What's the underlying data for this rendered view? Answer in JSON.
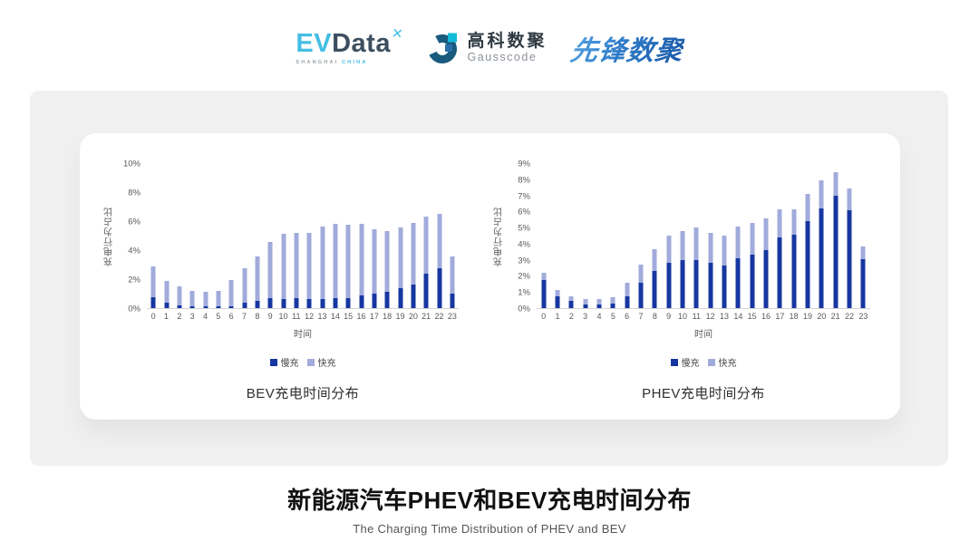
{
  "header": {
    "evdata": {
      "ev": "EV",
      "data": "Data",
      "mark": "x-star",
      "sub_left": "SHANGHAI",
      "sub_right": "CHINA"
    },
    "gausscode": {
      "cn": "高科数聚",
      "en": "Gausscode",
      "mark": "g-circle"
    },
    "xianfeng": {
      "text": "先锋数聚"
    }
  },
  "colors": {
    "slow_charge": "#1737A0",
    "fast_charge": "#A1ABDB",
    "panel_gray": "#f0f0f0",
    "axis_text": "#595959",
    "logo_cyan": "#45BEE4",
    "logo_navy": "#3C4E5F",
    "xianfeng_blue": "#2878C8"
  },
  "chart_data": [
    {
      "type": "bar",
      "stacked": true,
      "caption": "BEV充电时间分布",
      "ylabel": "充电行为占比",
      "xlabel": "时间",
      "legend_position": "bottom",
      "grid": false,
      "ylim": [
        0,
        10
      ],
      "ytick_step": 2,
      "ytick_suffix": "%",
      "categories": [
        0,
        1,
        2,
        3,
        4,
        5,
        6,
        7,
        8,
        9,
        10,
        11,
        12,
        13,
        14,
        15,
        16,
        17,
        18,
        19,
        20,
        21,
        22,
        23
      ],
      "series": [
        {
          "name": "慢充",
          "color": "#1737A0",
          "values": [
            0.75,
            0.35,
            0.2,
            0.15,
            0.1,
            0.1,
            0.15,
            0.35,
            0.5,
            0.7,
            0.65,
            0.7,
            0.6,
            0.65,
            0.7,
            0.7,
            0.85,
            1.0,
            1.1,
            1.35,
            1.6,
            2.4,
            2.75,
            1.0
          ]
        },
        {
          "name": "快充",
          "color": "#A1ABDB",
          "values": [
            2.1,
            1.55,
            1.3,
            1.05,
            1.0,
            1.1,
            1.8,
            2.4,
            3.05,
            3.85,
            4.5,
            4.5,
            4.6,
            4.95,
            5.1,
            5.05,
            4.95,
            4.45,
            4.2,
            4.2,
            4.3,
            3.9,
            3.75,
            2.55
          ]
        }
      ]
    },
    {
      "type": "bar",
      "stacked": true,
      "caption": "PHEV充电时间分布",
      "ylabel": "充电行为占比",
      "xlabel": "时间",
      "legend_position": "bottom",
      "grid": false,
      "ylim": [
        0,
        9
      ],
      "ytick_step": 1,
      "ytick_suffix": "%",
      "categories": [
        0,
        1,
        2,
        3,
        4,
        5,
        6,
        7,
        8,
        9,
        10,
        11,
        12,
        13,
        14,
        15,
        16,
        17,
        18,
        19,
        20,
        21,
        22,
        23
      ],
      "series": [
        {
          "name": "慢充",
          "color": "#1737A0",
          "values": [
            1.75,
            0.75,
            0.45,
            0.25,
            0.25,
            0.3,
            0.75,
            1.6,
            2.3,
            2.8,
            3.0,
            3.0,
            2.8,
            2.65,
            3.1,
            3.3,
            3.6,
            4.4,
            4.55,
            5.4,
            6.2,
            7.0,
            6.1,
            3.05
          ]
        },
        {
          "name": "快充",
          "color": "#A1ABDB",
          "values": [
            0.45,
            0.4,
            0.3,
            0.3,
            0.3,
            0.35,
            0.85,
            1.1,
            1.35,
            1.7,
            1.8,
            2.0,
            1.85,
            1.85,
            1.95,
            2.0,
            1.95,
            1.75,
            1.6,
            1.7,
            1.75,
            1.45,
            1.3,
            0.8
          ]
        }
      ]
    }
  ],
  "footer": {
    "title": "新能源汽车PHEV和BEV充电时间分布",
    "subtitle": "The Charging Time Distribution of PHEV and BEV"
  }
}
